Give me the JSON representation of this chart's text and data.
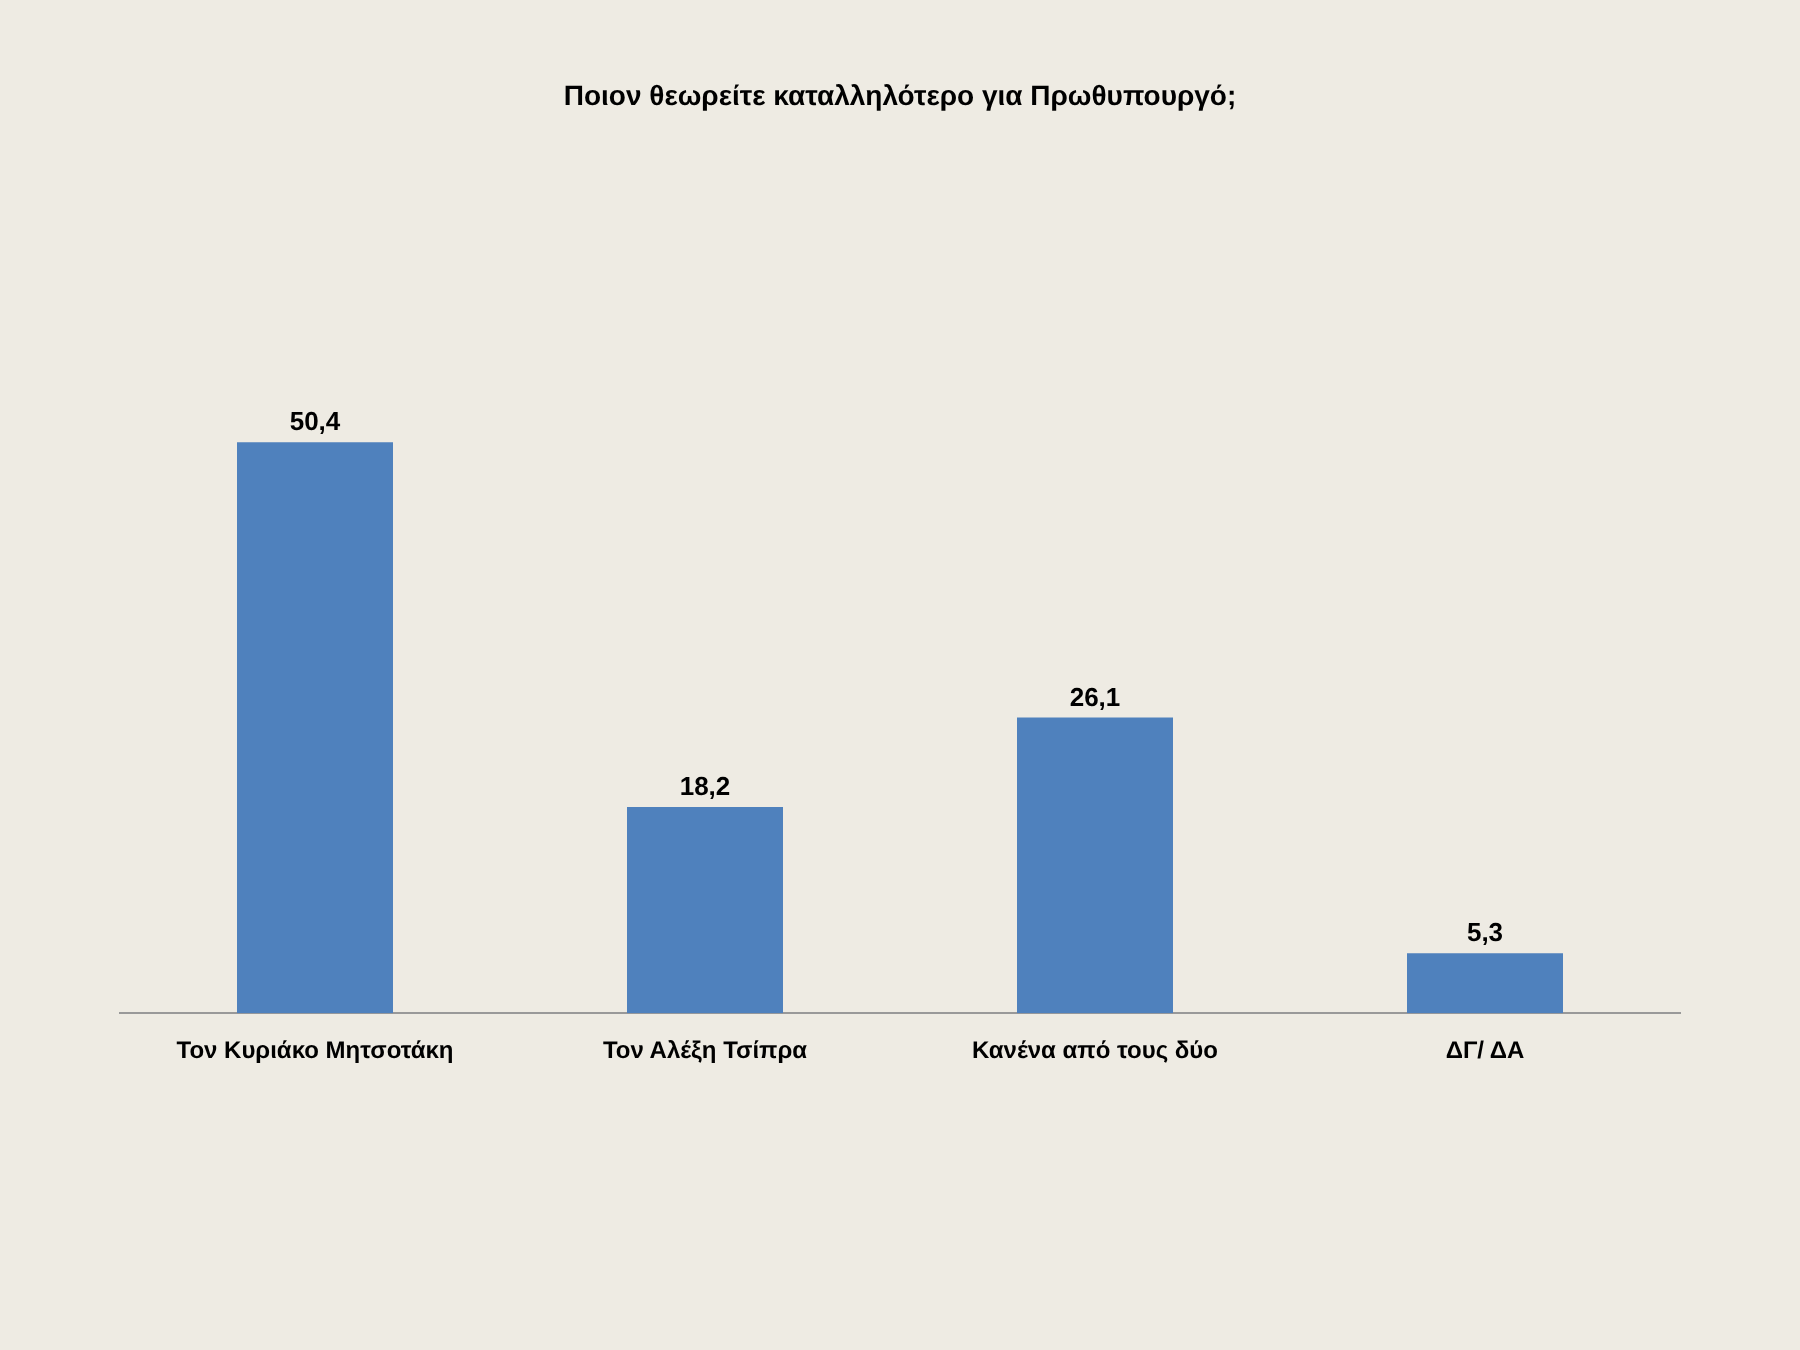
{
  "chart_data": {
    "type": "bar",
    "title": "Ποιον θεωρείτε καταλληλότερο για Πρωθυπουργό;",
    "categories": [
      "Τον Κυριάκο Μητσοτάκη",
      "Τον Αλέξη Τσίπρα",
      "Κανένα από τους δύο",
      "ΔΓ/ ΔΑ"
    ],
    "values": [
      50.4,
      18.2,
      26.1,
      5.3
    ],
    "value_labels": [
      "50,4",
      "18,2",
      "26,1",
      "5,3"
    ],
    "color": "#4f81bd",
    "grid": false,
    "legend": false,
    "tick_labels": "x"
  }
}
